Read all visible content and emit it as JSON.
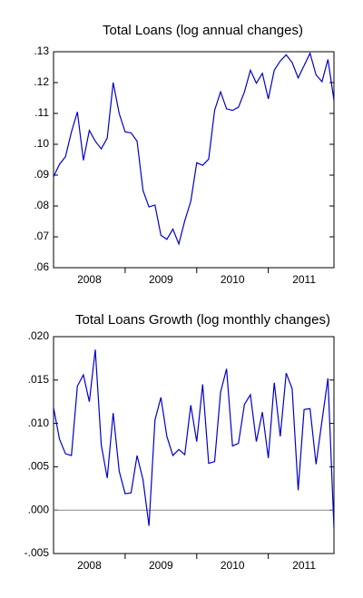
{
  "chart_data": [
    {
      "type": "line",
      "title": "Total Loans (log annual changes)",
      "x": [
        2008,
        2008.083,
        2008.167,
        2008.25,
        2008.333,
        2008.417,
        2008.5,
        2008.583,
        2008.667,
        2008.75,
        2008.833,
        2008.917,
        2009,
        2009.083,
        2009.167,
        2009.25,
        2009.333,
        2009.417,
        2009.5,
        2009.583,
        2009.667,
        2009.75,
        2009.833,
        2009.917,
        2010,
        2010.083,
        2010.167,
        2010.25,
        2010.333,
        2010.417,
        2010.5,
        2010.583,
        2010.667,
        2010.75,
        2010.833,
        2010.917,
        2011,
        2011.083,
        2011.167,
        2011.25,
        2011.333,
        2011.417,
        2011.5,
        2011.583,
        2011.667,
        2011.75,
        2011.833,
        2011.917
      ],
      "series": [
        {
          "color": "#0000cc",
          "values": [
            0.0895,
            0.0935,
            0.096,
            0.104,
            0.1105,
            0.0948,
            0.1045,
            0.101,
            0.0985,
            0.102,
            0.12,
            0.11,
            0.104,
            0.1037,
            0.101,
            0.085,
            0.0797,
            0.0803,
            0.0705,
            0.0692,
            0.0725,
            0.0677,
            0.0752,
            0.0815,
            0.094,
            0.0932,
            0.0952,
            0.111,
            0.117,
            0.1115,
            0.111,
            0.112,
            0.117,
            0.124,
            0.1198,
            0.123,
            0.1147,
            0.124,
            0.127,
            0.129,
            0.1265,
            0.1215,
            0.1255,
            0.1295,
            0.1225,
            0.1203,
            0.1275,
            0.1143
          ]
        }
      ],
      "xlim": [
        2008,
        2011.917
      ],
      "xticks": [
        {
          "value": 2008.5,
          "label": "2008"
        },
        {
          "value": 2009.5,
          "label": "2009"
        },
        {
          "value": 2010.5,
          "label": "2010"
        },
        {
          "value": 2011.5,
          "label": "2011"
        }
      ],
      "xminorticks": [
        2009,
        2010,
        2011
      ],
      "ylim": [
        0.06,
        0.13
      ],
      "yticks": [
        {
          "value": 0.06,
          "label": ".06"
        },
        {
          "value": 0.07,
          "label": ".07"
        },
        {
          "value": 0.08,
          "label": ".08"
        },
        {
          "value": 0.09,
          "label": ".09"
        },
        {
          "value": 0.1,
          "label": ".10"
        },
        {
          "value": 0.11,
          "label": ".11"
        },
        {
          "value": 0.12,
          "label": ".12"
        },
        {
          "value": 0.13,
          "label": ".13"
        }
      ],
      "zero_line": false
    },
    {
      "type": "line",
      "title": "Total Loans Growth (log monthly changes)",
      "x": [
        2008,
        2008.083,
        2008.167,
        2008.25,
        2008.333,
        2008.417,
        2008.5,
        2008.583,
        2008.667,
        2008.75,
        2008.833,
        2008.917,
        2009,
        2009.083,
        2009.167,
        2009.25,
        2009.333,
        2009.417,
        2009.5,
        2009.583,
        2009.667,
        2009.75,
        2009.833,
        2009.917,
        2010,
        2010.083,
        2010.167,
        2010.25,
        2010.333,
        2010.417,
        2010.5,
        2010.583,
        2010.667,
        2010.75,
        2010.833,
        2010.917,
        2011,
        2011.083,
        2011.167,
        2011.25,
        2011.333,
        2011.417,
        2011.5,
        2011.583,
        2011.667,
        2011.75,
        2011.833,
        2011.917
      ],
      "series": [
        {
          "color": "#0000cc",
          "values": [
            0.0118,
            0.0082,
            0.0065,
            0.0063,
            0.0143,
            0.0156,
            0.0125,
            0.0185,
            0.0075,
            0.0037,
            0.0112,
            0.0045,
            0.0019,
            0.002,
            0.0063,
            0.0035,
            -0.0018,
            0.0104,
            0.013,
            0.0085,
            0.0063,
            0.007,
            0.0064,
            0.0121,
            0.0079,
            0.0145,
            0.0054,
            0.0056,
            0.0136,
            0.0163,
            0.0074,
            0.0077,
            0.0122,
            0.0133,
            0.0079,
            0.0113,
            0.006,
            0.0147,
            0.0085,
            0.0158,
            0.014,
            0.0023,
            0.0116,
            0.0117,
            0.0053,
            0.0103,
            0.0152,
            -0.0021
          ]
        }
      ],
      "xlim": [
        2008,
        2011.917
      ],
      "xticks": [
        {
          "value": 2008.5,
          "label": "2008"
        },
        {
          "value": 2009.5,
          "label": "2009"
        },
        {
          "value": 2010.5,
          "label": "2010"
        },
        {
          "value": 2011.5,
          "label": "2011"
        }
      ],
      "xminorticks": [
        2009,
        2010,
        2011
      ],
      "ylim": [
        -0.005,
        0.02
      ],
      "yticks": [
        {
          "value": -0.005,
          "label": "-.005"
        },
        {
          "value": 0,
          "label": ".000"
        },
        {
          "value": 0.005,
          "label": ".005"
        },
        {
          "value": 0.01,
          "label": ".010"
        },
        {
          "value": 0.015,
          "label": ".015"
        },
        {
          "value": 0.02,
          "label": ".020"
        }
      ],
      "zero_line": true
    }
  ]
}
